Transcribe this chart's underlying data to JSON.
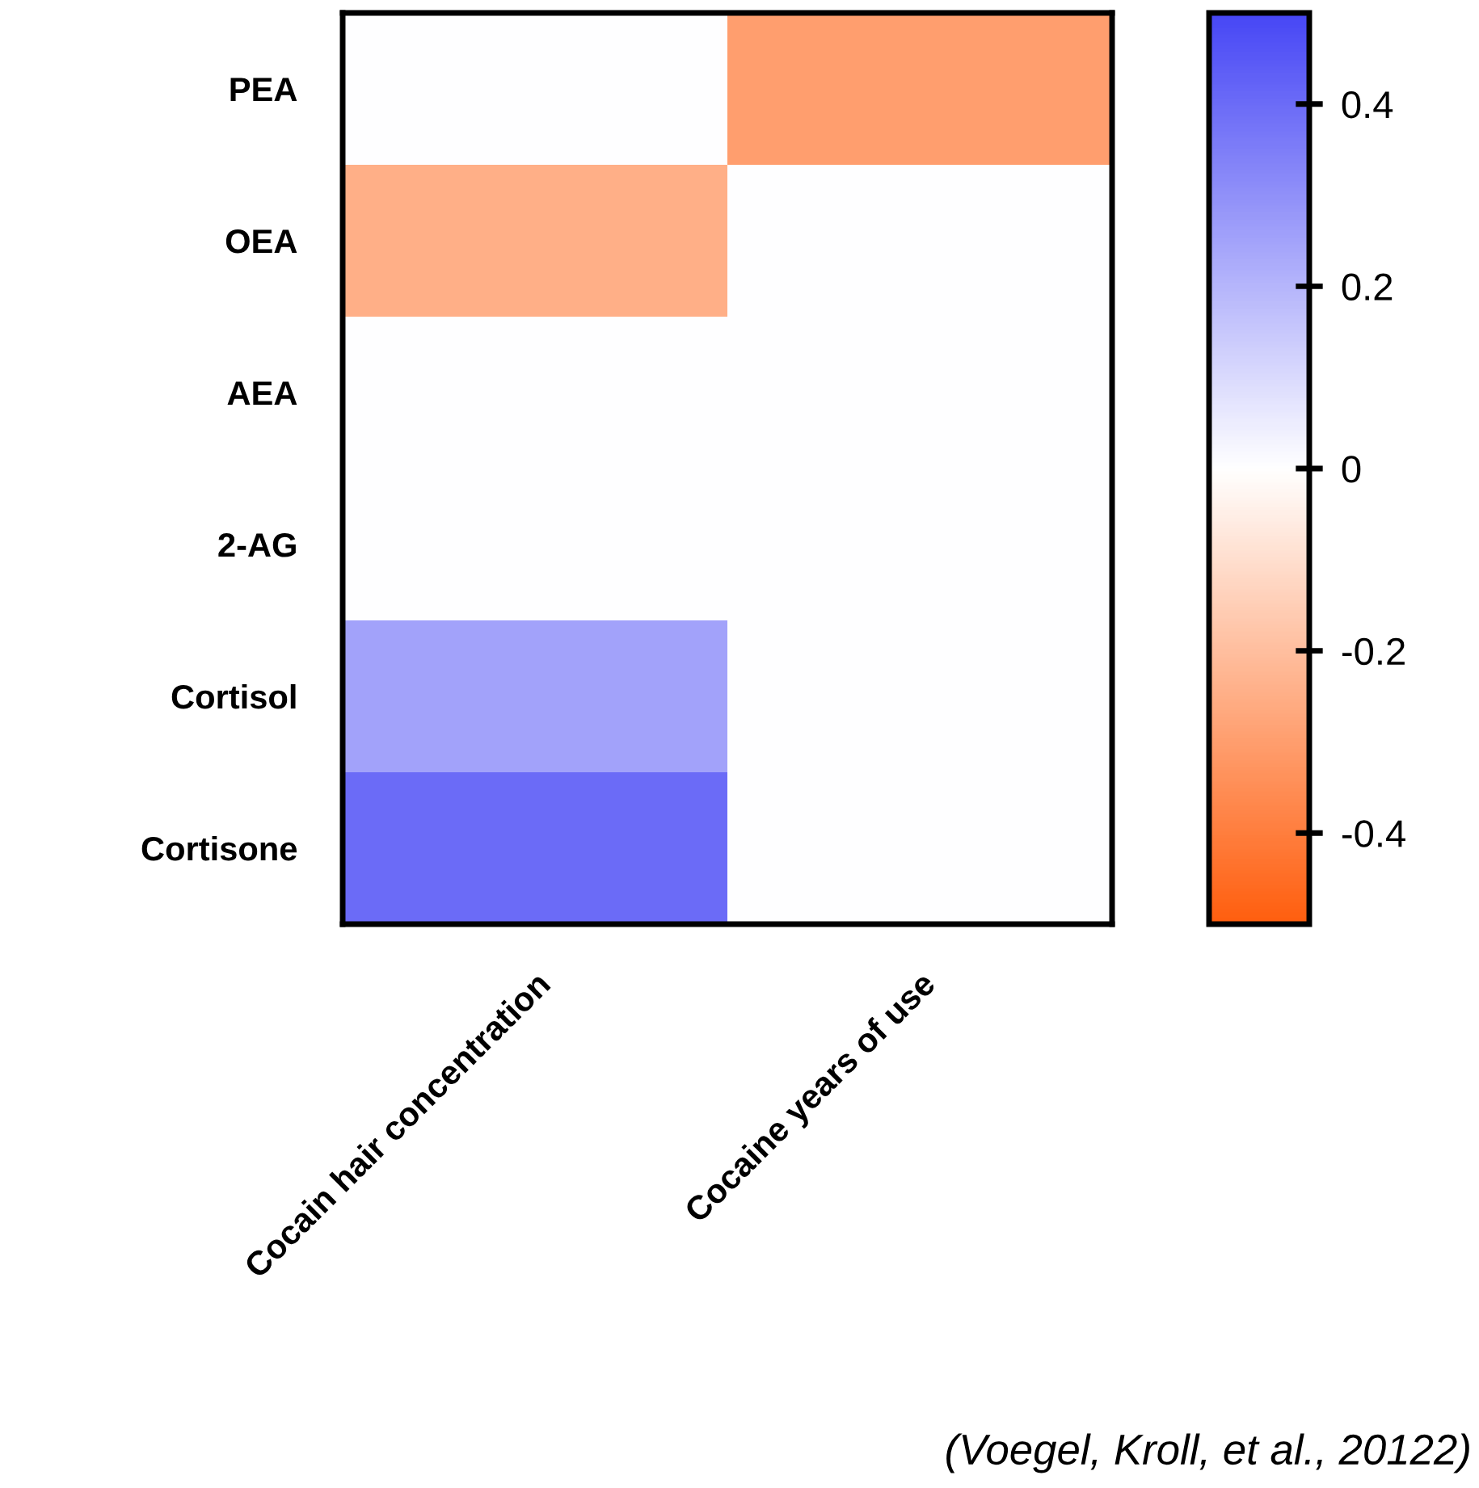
{
  "chart_data": {
    "type": "heatmap",
    "categories": [
      "Cocain hair concentration",
      "Cocaine years of use"
    ],
    "y_categories": [
      "PEA",
      "OEA",
      "AEA",
      "2-AG",
      "Cortisol",
      "Cortisone"
    ],
    "cells": [
      [
        0,
        -0.3
      ],
      [
        -0.25,
        0
      ],
      [
        0,
        0
      ],
      [
        0,
        0
      ],
      [
        0.25,
        0
      ],
      [
        0.4,
        0
      ]
    ],
    "clim": [
      -0.5,
      0.5
    ],
    "cticks": [
      {
        "value": 0.4,
        "label": "0.4"
      },
      {
        "value": 0.2,
        "label": "0.2"
      },
      0,
      {
        "value": -0.2,
        "label": "-0.2"
      },
      {
        "value": -0.4,
        "label": "-0.4"
      }
    ],
    "annotations": [
      "(Voegel, Kroll, et al., 20122)"
    ]
  }
}
